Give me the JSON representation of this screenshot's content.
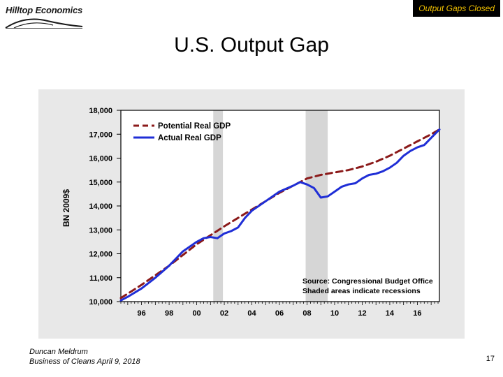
{
  "header": {
    "logo_text": "Hilltop Economics",
    "badge_text": "Output Gaps Closed",
    "badge_color": "#000000",
    "badge_text_color": "#f0c000"
  },
  "slide": {
    "title": "U.S. Output Gap",
    "author": "Duncan Meldrum",
    "event": "Business of Cleans April 9, 2018",
    "page_number": "17"
  },
  "chart_data": {
    "type": "line",
    "title": "",
    "ylabel": "BN 2009$",
    "xlabel": "",
    "xlim": [
      1994.5,
      2017.6
    ],
    "ylim": [
      10000,
      18000
    ],
    "y_ticks": [
      {
        "value": 10000,
        "label": "10,000"
      },
      {
        "value": 11000,
        "label": "11,000"
      },
      {
        "value": 12000,
        "label": "12,000"
      },
      {
        "value": 13000,
        "label": "13,000"
      },
      {
        "value": 14000,
        "label": "14,000"
      },
      {
        "value": 15000,
        "label": "15,000"
      },
      {
        "value": 16000,
        "label": "16,000"
      },
      {
        "value": 17000,
        "label": "17,000"
      },
      {
        "value": 18000,
        "label": "18,000"
      }
    ],
    "x_ticks": [
      {
        "value": 1996,
        "label": "96"
      },
      {
        "value": 1998,
        "label": "98"
      },
      {
        "value": 2000,
        "label": "00"
      },
      {
        "value": 2002,
        "label": "02"
      },
      {
        "value": 2004,
        "label": "04"
      },
      {
        "value": 2006,
        "label": "06"
      },
      {
        "value": 2008,
        "label": "08"
      },
      {
        "value": 2010,
        "label": "10"
      },
      {
        "value": 2012,
        "label": "12"
      },
      {
        "value": 2014,
        "label": "14"
      },
      {
        "value": 2016,
        "label": "16"
      }
    ],
    "recessions": [
      {
        "start": 2001.2,
        "end": 2001.9
      },
      {
        "start": 2007.9,
        "end": 2009.5
      }
    ],
    "series": [
      {
        "name": "Potential Real GDP",
        "color": "#8b1a1a",
        "style": "dashed",
        "x": [
          1994.5,
          1996,
          1998,
          2000,
          2002,
          2004,
          2006,
          2008,
          2009,
          2010,
          2011,
          2012,
          2013,
          2014,
          2015,
          2016,
          2017,
          2017.6
        ],
        "y": [
          10150,
          10700,
          11500,
          12400,
          13150,
          13850,
          14550,
          15150,
          15300,
          15400,
          15500,
          15650,
          15850,
          16100,
          16400,
          16700,
          17000,
          17200
        ]
      },
      {
        "name": "Actual Real GDP",
        "color": "#1f2ed6",
        "style": "solid",
        "x": [
          1994.5,
          1995,
          1996,
          1997,
          1998,
          1999,
          2000,
          2000.5,
          2001,
          2001.5,
          2002,
          2002.5,
          2003,
          2003.5,
          2004,
          2005,
          2006,
          2007,
          2007.5,
          2008,
          2008.5,
          2009,
          2009.5,
          2010,
          2010.5,
          2011,
          2011.5,
          2012,
          2012.5,
          2013,
          2013.5,
          2014,
          2014.5,
          2015,
          2015.5,
          2016,
          2016.5,
          2017,
          2017.6
        ],
        "y": [
          10050,
          10200,
          10550,
          11000,
          11500,
          12100,
          12500,
          12650,
          12700,
          12650,
          12850,
          12950,
          13100,
          13500,
          13800,
          14200,
          14600,
          14850,
          15000,
          14900,
          14750,
          14350,
          14400,
          14600,
          14800,
          14900,
          14950,
          15150,
          15300,
          15350,
          15450,
          15600,
          15800,
          16100,
          16300,
          16450,
          16550,
          16850,
          17200
        ]
      }
    ],
    "annotations": [
      "Source: Congressional Budget Office",
      "Shaded areas indicate recessions"
    ],
    "legend_position": "top-left"
  }
}
